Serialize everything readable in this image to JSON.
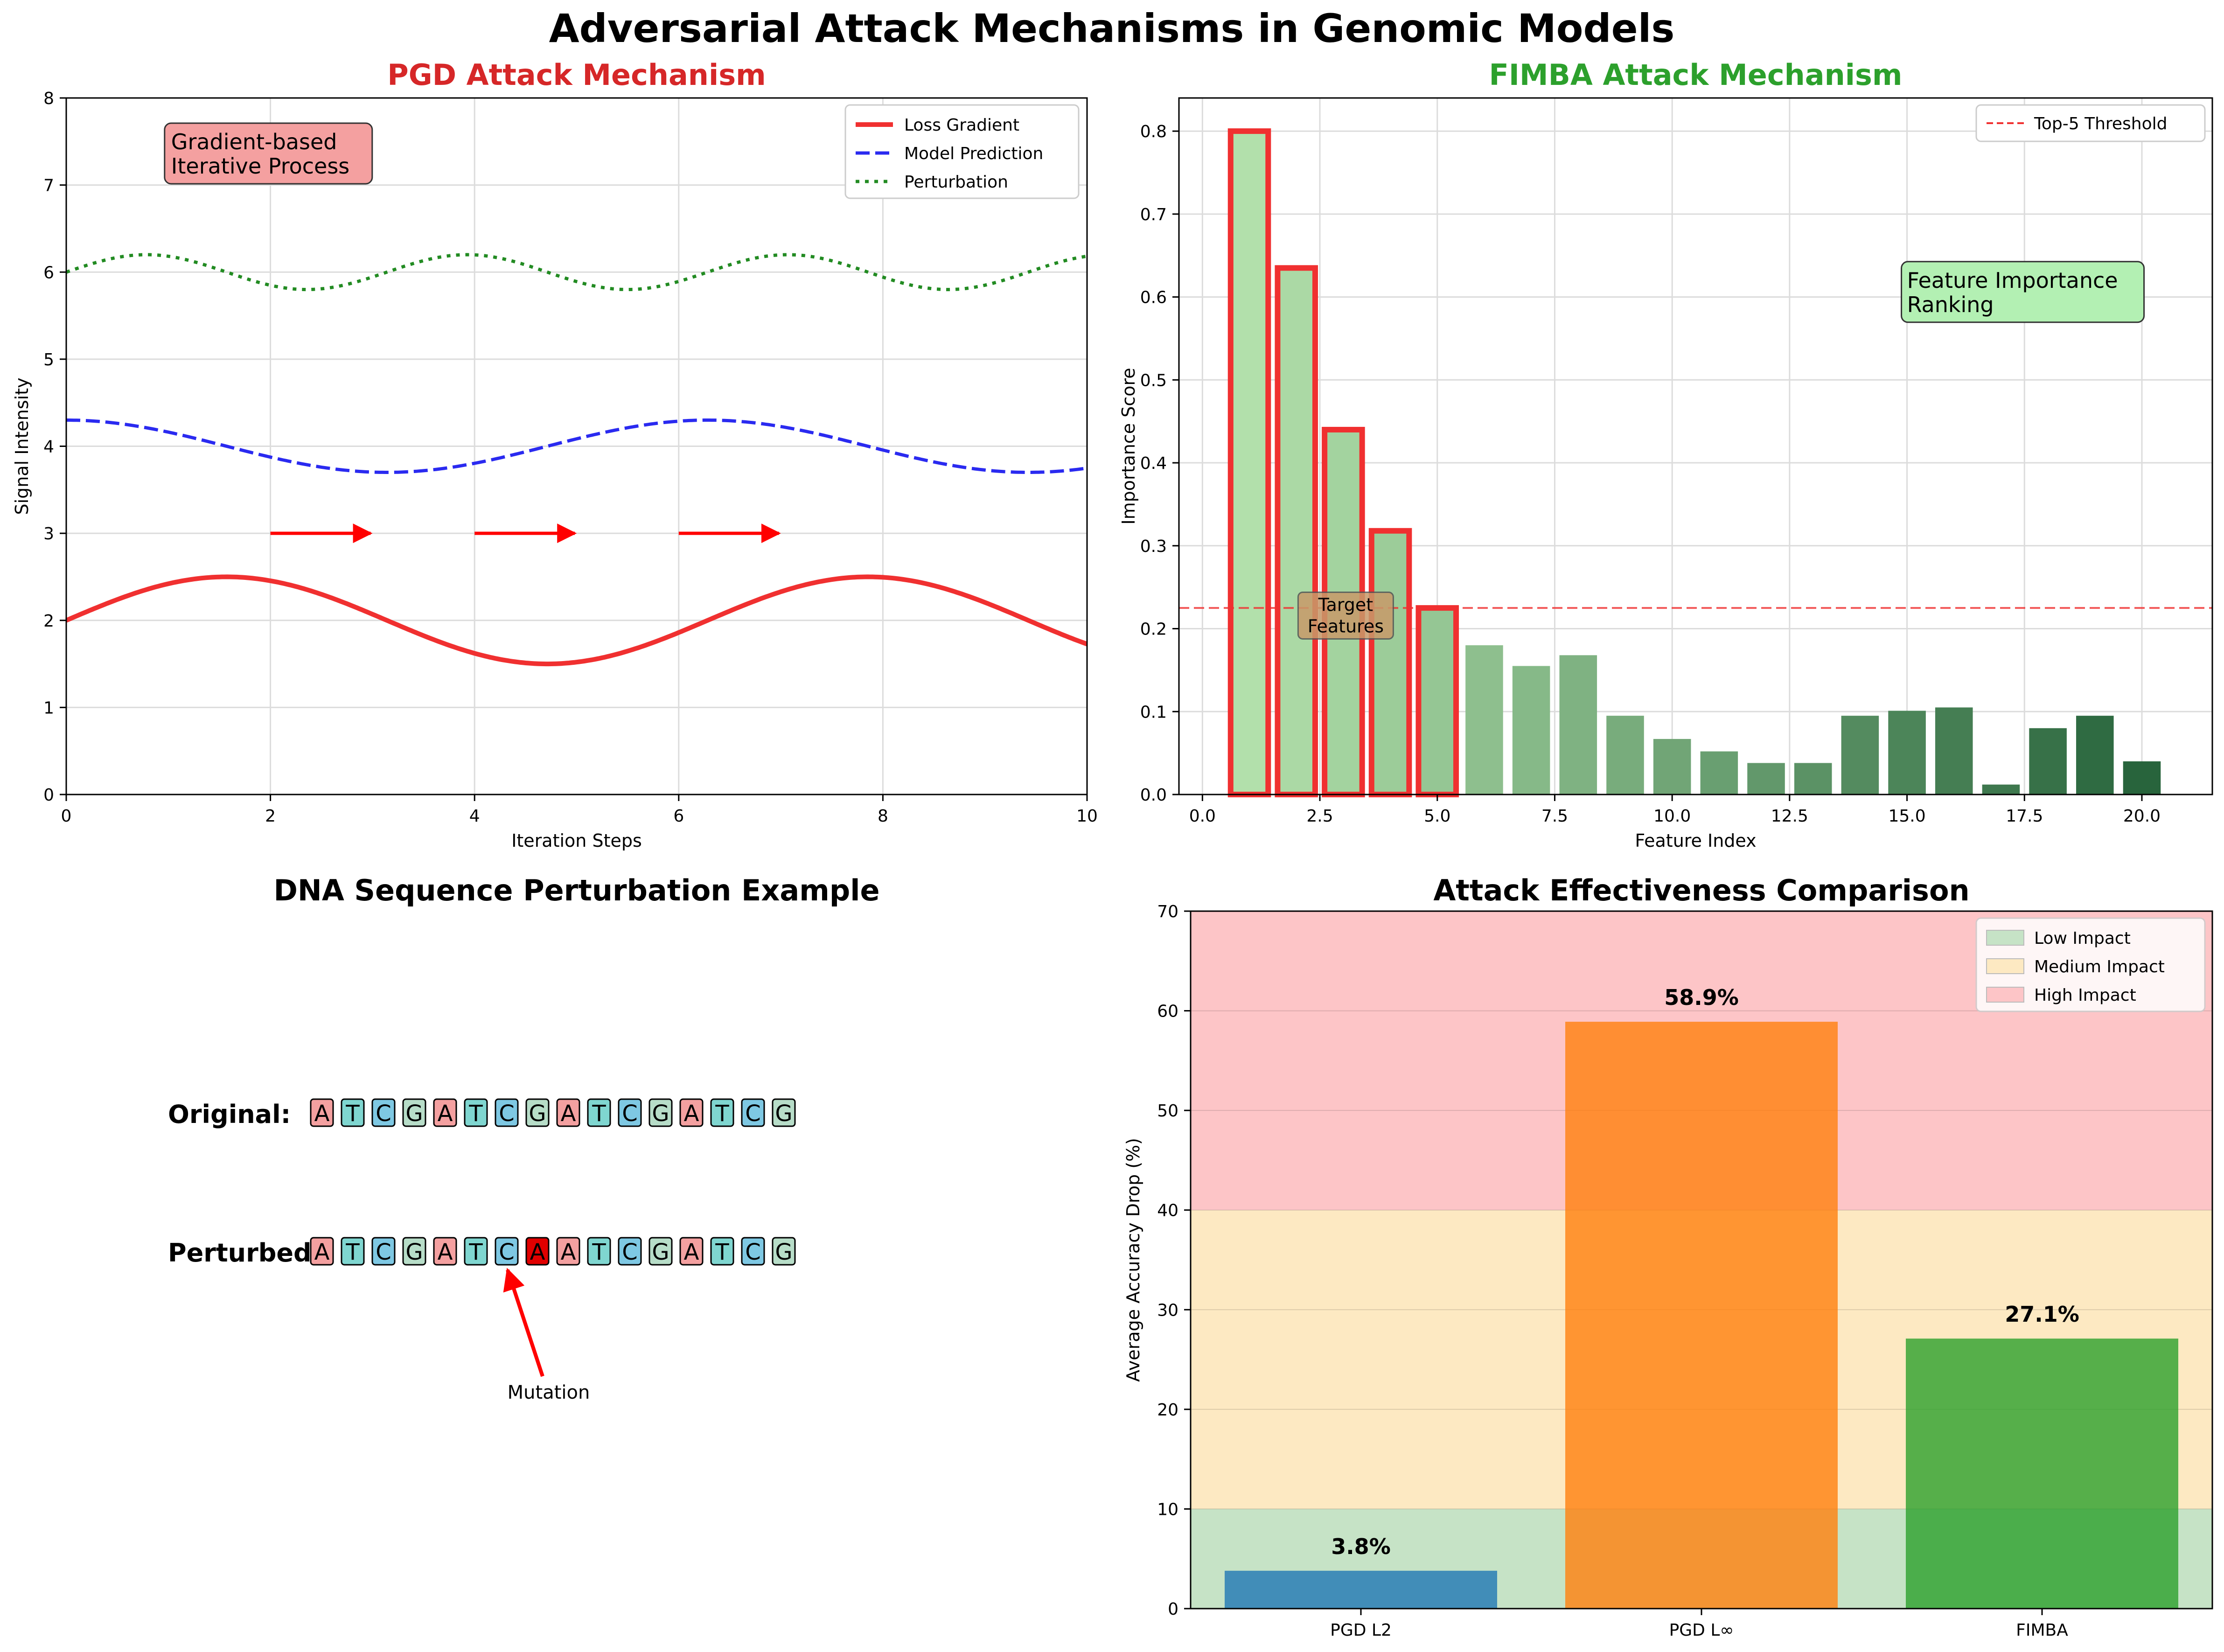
{
  "title": "Adversarial Attack Mechanisms in Genomic Models",
  "colors": {
    "red": "#f03030",
    "blue": "#2a2af0",
    "green": "#228b22",
    "title_red": "#d62728",
    "title_green": "#2ca02c",
    "low": "#c6e3c6",
    "medium": "#fde9c2",
    "high": "#fdc5c7"
  },
  "chart_data": [
    {
      "type": "line",
      "title": "PGD Attack Mechanism",
      "xlabel": "Iteration Steps",
      "ylabel": "Signal Intensity",
      "xlim": [
        0,
        10
      ],
      "ylim": [
        0,
        8
      ],
      "xticks": [
        "0",
        "2",
        "4",
        "6",
        "8",
        "10"
      ],
      "yticks": [
        "0",
        "1",
        "2",
        "3",
        "4",
        "5",
        "6",
        "7",
        "8"
      ],
      "grid": true,
      "legend": "top-right",
      "series": [
        {
          "name": "Loss Gradient",
          "style": "solid",
          "formula": "2 + 0.5*sin(x)"
        },
        {
          "name": "Model Prediction",
          "style": "dashed",
          "formula": "4 + 0.3*cos(x)"
        },
        {
          "name": "Perturbation",
          "style": "dotted",
          "formula": "6 + 0.2*sin(2x)"
        }
      ],
      "arrows": [
        {
          "x_start": 2,
          "x_end": 3,
          "y": 3
        },
        {
          "x_start": 4,
          "x_end": 5,
          "y": 3
        },
        {
          "x_start": 6,
          "x_end": 7,
          "y": 3
        }
      ],
      "annotation": "Gradient-based\nIterative Process"
    },
    {
      "type": "bar",
      "title": "FIMBA Attack Mechanism",
      "xlabel": "Feature Index",
      "ylabel": "Importance Score",
      "xlim": [
        -0.5,
        21.5
      ],
      "ylim": [
        0,
        0.84
      ],
      "xticks": [
        "0.0",
        "2.5",
        "5.0",
        "7.5",
        "10.0",
        "12.5",
        "15.0",
        "17.5",
        "20.0"
      ],
      "yticks": [
        "0.0",
        "0.1",
        "0.2",
        "0.3",
        "0.4",
        "0.5",
        "0.6",
        "0.7",
        "0.8"
      ],
      "grid": true,
      "legend": "top-right",
      "x": [
        1,
        2,
        3,
        4,
        5,
        6,
        7,
        8,
        9,
        10,
        11,
        12,
        13,
        14,
        15,
        16,
        17,
        18,
        19,
        20
      ],
      "values": [
        0.8,
        0.635,
        0.44,
        0.318,
        0.225,
        0.18,
        0.155,
        0.168,
        0.095,
        0.067,
        0.052,
        0.038,
        0.038,
        0.095,
        0.101,
        0.105,
        0.012,
        0.08,
        0.095,
        0.04
      ],
      "highlighted_top": 5,
      "threshold": {
        "name": "Top-5 Threshold",
        "value": 0.225
      },
      "annotations": [
        "Feature Importance\nRanking",
        "Target\nFeatures"
      ]
    },
    {
      "type": "other",
      "title": "DNA Sequence Perturbation Example",
      "rows": [
        {
          "label": "Original:",
          "sequence": [
            "A",
            "T",
            "C",
            "G",
            "A",
            "T",
            "C",
            "G",
            "A",
            "T",
            "C",
            "G",
            "A",
            "T",
            "C",
            "G"
          ]
        },
        {
          "label": "Perturbed:",
          "sequence": [
            "A",
            "T",
            "C",
            "G",
            "A",
            "T",
            "C",
            "A",
            "A",
            "T",
            "C",
            "G",
            "A",
            "T",
            "C",
            "G"
          ]
        }
      ],
      "mutation_index": 7,
      "mutation_label": "Mutation",
      "base_colors": {
        "A": "#f4a0a0",
        "T": "#7fd6d0",
        "C": "#7ec8e3",
        "G": "#b7ddc8",
        "mutated": "#e00000"
      }
    },
    {
      "type": "bar",
      "title": "Attack Effectiveness Comparison",
      "xlabel": "",
      "ylabel": "Average Accuracy Drop (%)",
      "categories": [
        "PGD L2",
        "PGD L∞",
        "FIMBA"
      ],
      "values": [
        3.8,
        58.9,
        27.1
      ],
      "value_labels": [
        "3.8%",
        "58.9%",
        "27.1%"
      ],
      "bar_colors": [
        "#1f77b4",
        "#ff7f0e",
        "#2ca02c"
      ],
      "ylim": [
        0,
        70
      ],
      "yticks": [
        "0",
        "10",
        "20",
        "30",
        "40",
        "50",
        "60",
        "70"
      ],
      "grid": true,
      "legend": "top-right",
      "bands": [
        {
          "name": "Low Impact",
          "from": 0,
          "to": 10
        },
        {
          "name": "Medium Impact",
          "from": 10,
          "to": 40
        },
        {
          "name": "High Impact",
          "from": 40,
          "to": 70
        }
      ]
    }
  ]
}
